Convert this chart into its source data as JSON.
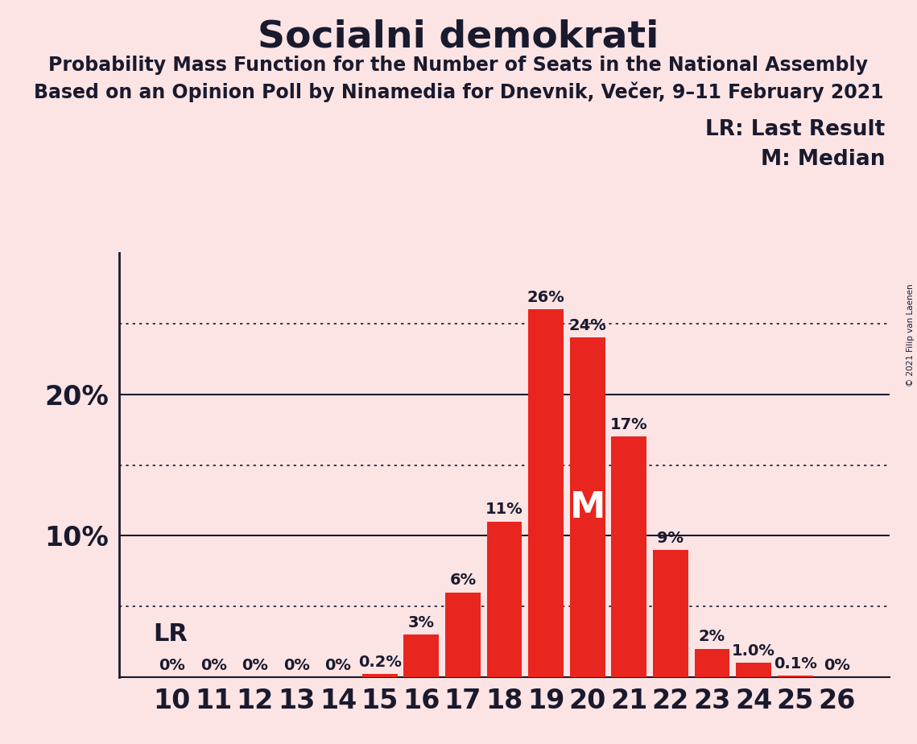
{
  "title": "Socialni demokrati",
  "subtitle1": "Probability Mass Function for the Number of Seats in the National Assembly",
  "subtitle2": "Based on an Opinion Poll by Ninamedia for Dnevnik, Večer, 9–11 February 2021",
  "copyright": "© 2021 Filip van Laenen",
  "categories": [
    10,
    11,
    12,
    13,
    14,
    15,
    16,
    17,
    18,
    19,
    20,
    21,
    22,
    23,
    24,
    25,
    26
  ],
  "values": [
    0,
    0,
    0,
    0,
    0,
    0.2,
    3,
    6,
    11,
    26,
    24,
    17,
    9,
    2,
    1.0,
    0.1,
    0
  ],
  "bar_color": "#e8251f",
  "background_color": "#fce4e4",
  "text_color": "#1a1a2e",
  "median_seat": 20,
  "lr_seat": 10,
  "solid_lines": [
    0,
    10,
    20
  ],
  "dotted_lines": [
    5,
    15,
    25
  ],
  "ylim": [
    0,
    30
  ],
  "bar_labels": [
    "0%",
    "0%",
    "0%",
    "0%",
    "0%",
    "0.2%",
    "3%",
    "6%",
    "11%",
    "26%",
    "24%",
    "17%",
    "9%",
    "2%",
    "1.0%",
    "0.1%",
    "0%"
  ],
  "lr_label": "LR",
  "lr_legend": "LR: Last Result",
  "m_legend": "M: Median",
  "m_label": "M",
  "title_fontsize": 34,
  "subtitle_fontsize": 17,
  "ytick_fontsize": 24,
  "xtick_fontsize": 24,
  "bar_label_fontsize": 14,
  "legend_fontsize": 19,
  "lr_fontsize": 22,
  "m_fontsize": 32
}
